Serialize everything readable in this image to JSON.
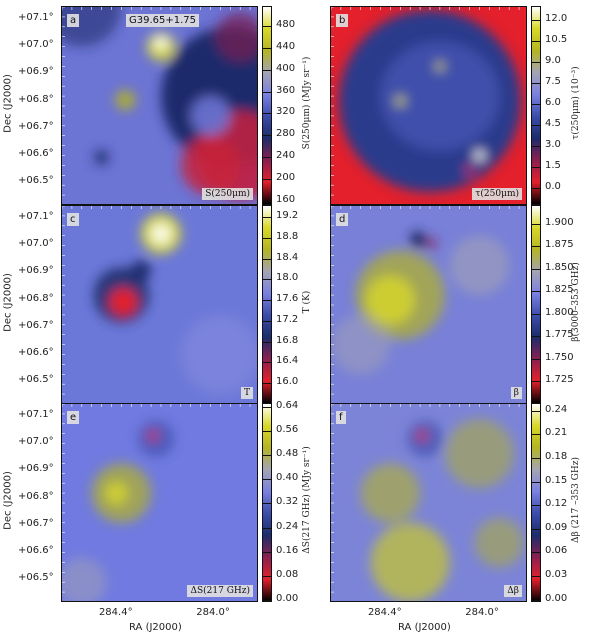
{
  "colormap": [
    "#000000",
    "#e3202c",
    "#8a2050",
    "#1c2c6c",
    "#3c4caa",
    "#7a80e0",
    "#a4a4b4",
    "#b4b424",
    "#d8d828",
    "#ffffff"
  ],
  "axes": {
    "xlabel": "RA (J2000)",
    "ylabel": "Dec (J2000)",
    "ra_ticks": [
      "284.4°",
      "284.0°"
    ],
    "ra_values": [
      284.4,
      284.0
    ],
    "ra_range": [
      284.63,
      283.82
    ],
    "dec_ticks": [
      "+07.1°",
      "+07.0°",
      "+06.9°",
      "+06.8°",
      "+06.7°",
      "+06.6°",
      "+06.5°"
    ],
    "dec_values": [
      7.1,
      7.0,
      6.9,
      6.8,
      6.7,
      6.6,
      6.5
    ],
    "dec_range": [
      6.416,
      7.148
    ]
  },
  "chart_data": [
    {
      "type": "heatmap",
      "panel": "a",
      "title": "G39.65+1.75",
      "label": "S(250μm)",
      "colorbar_label": "S(250μm) (MJy sr⁻¹)",
      "ticks": [
        "160",
        "200",
        "240",
        "280",
        "320",
        "360",
        "400",
        "440",
        "480"
      ],
      "range": [
        153,
        516
      ]
    },
    {
      "type": "heatmap",
      "panel": "b",
      "label": "τ(250μm)",
      "colorbar_label": "τ(250μm) (10⁻³)",
      "ticks": [
        "0.0",
        "1.5",
        "3.0",
        "4.5",
        "6.0",
        "7.5",
        "9.0",
        "10.5",
        "12.0"
      ],
      "range": [
        -1.2,
        13.0
      ]
    },
    {
      "type": "heatmap",
      "panel": "c",
      "label": "T",
      "colorbar_label": "T (K)",
      "ticks": [
        "16.0",
        "16.4",
        "16.8",
        "17.2",
        "17.6",
        "18.0",
        "18.4",
        "18.8",
        "19.2"
      ],
      "range": [
        15.6,
        19.43
      ]
    },
    {
      "type": "heatmap",
      "panel": "d",
      "label": "β",
      "colorbar_label": "β(3000–353 GHz)",
      "ticks": [
        "1.725",
        "1.750",
        "1.775",
        "1.800",
        "1.825",
        "1.850",
        "1.875",
        "1.900"
      ],
      "range": [
        1.7,
        1.921
      ]
    },
    {
      "type": "heatmap",
      "panel": "e",
      "label": "ΔS(217 GHz)",
      "colorbar_label": "ΔS(217 GHz) (MJy sr⁻¹)",
      "ticks": [
        "0.00",
        "0.08",
        "0.16",
        "0.24",
        "0.32",
        "0.40",
        "0.48",
        "0.56",
        "0.64"
      ],
      "range": [
        -0.007,
        0.653
      ]
    },
    {
      "type": "heatmap",
      "panel": "f",
      "label": "Δβ",
      "colorbar_label": "Δβ (217 –353 GHz)",
      "ticks": [
        "0.00",
        "0.03",
        "0.06",
        "0.09",
        "0.12",
        "0.15",
        "0.18",
        "0.21",
        "0.24"
      ],
      "range": [
        -0.003,
        0.25
      ]
    }
  ]
}
